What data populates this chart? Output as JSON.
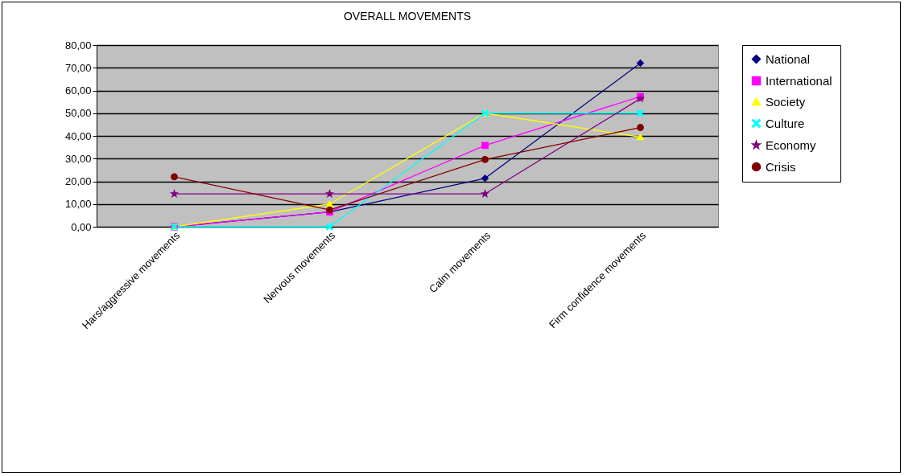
{
  "chart_data": {
    "type": "line",
    "title": "OVERALL MOVEMENTS",
    "categories": [
      "Hars/aggressive movements",
      "Nervous movements",
      "Calm movements",
      "Firm confidence movements"
    ],
    "series": [
      {
        "name": "National",
        "color": "#000080",
        "marker": "diamond",
        "values": [
          0,
          6.5,
          21.3,
          72
        ]
      },
      {
        "name": "International",
        "color": "#ff00ff",
        "marker": "square",
        "values": [
          0,
          6.5,
          35.8,
          57.3
        ]
      },
      {
        "name": "Society",
        "color": "#ffff00",
        "marker": "triangle",
        "values": [
          0,
          10,
          50,
          39.5
        ]
      },
      {
        "name": "Culture",
        "color": "#00ffff",
        "marker": "cross",
        "values": [
          0,
          0,
          50,
          50
        ]
      },
      {
        "name": "Economy",
        "color": "#800080",
        "marker": "star",
        "values": [
          14.5,
          14.5,
          14.5,
          56.4
        ]
      },
      {
        "name": "Crisis",
        "color": "#800000",
        "marker": "circle",
        "values": [
          22,
          7.4,
          29.6,
          43.7
        ]
      }
    ],
    "ylim": [
      0,
      80
    ],
    "yticks": [
      {
        "value": 0,
        "label": "0,00"
      },
      {
        "value": 10,
        "label": "10,00"
      },
      {
        "value": 20,
        "label": "20,00"
      },
      {
        "value": 30,
        "label": "30,00"
      },
      {
        "value": 40,
        "label": "40,00"
      },
      {
        "value": 50,
        "label": "50,00"
      },
      {
        "value": 60,
        "label": "60,00"
      },
      {
        "value": 70,
        "label": "70,00"
      },
      {
        "value": 80,
        "label": "80,00"
      }
    ],
    "grid": "y",
    "legend": "right",
    "line_style": "solid"
  }
}
